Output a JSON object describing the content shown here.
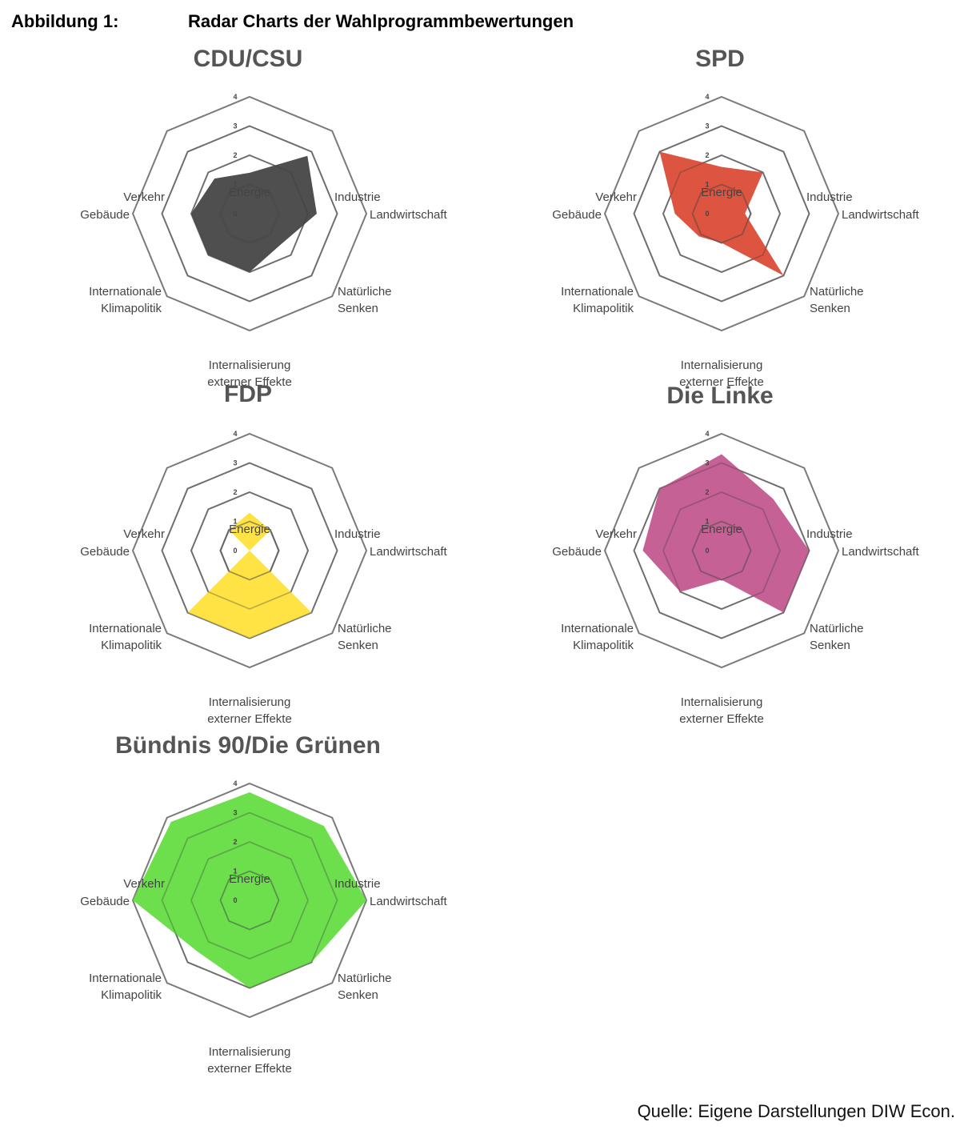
{
  "figure": {
    "label": "Abbildung 1:",
    "title": "Radar Charts der Wahlprogrammbewertungen",
    "source": "Quelle: Eigene Darstellungen DIW Econ."
  },
  "chart_data": [
    {
      "type": "radar",
      "title": "CDU/CSU",
      "color": "#3c3c3c",
      "categories": [
        "Energie",
        "Industrie",
        "Landwirtschaft",
        "Natürliche Senken",
        "Internalisierung externer Effekte",
        "Internationale Klimapolitik",
        "Gebäude",
        "Verkehr"
      ],
      "values": [
        1.4,
        2.8,
        2.3,
        1.5,
        2.0,
        2.0,
        2.0,
        1.7
      ],
      "ticks": [
        0,
        1,
        2,
        3,
        4
      ],
      "range": [
        0,
        4
      ]
    },
    {
      "type": "radar",
      "title": "SPD",
      "color": "#d9432b",
      "categories": [
        "Energie",
        "Industrie",
        "Landwirtschaft",
        "Natürliche Senken",
        "Internalisierung externer Effekte",
        "Internationale Klimapolitik",
        "Gebäude",
        "Verkehr"
      ],
      "values": [
        1.6,
        2.0,
        0.8,
        3.0,
        1.0,
        1.1,
        1.6,
        3.0
      ],
      "ticks": [
        0,
        1,
        2,
        3,
        4
      ],
      "range": [
        0,
        4
      ]
    },
    {
      "type": "radar",
      "title": "FDP",
      "color": "#ffe030",
      "categories": [
        "Energie",
        "Industrie",
        "Landwirtschaft",
        "Natürliche Senken",
        "Internalisierung externer Effekte",
        "Internationale Klimapolitik",
        "Gebäude",
        "Verkehr"
      ],
      "values": [
        1.3,
        1.0,
        0,
        3.0,
        3.0,
        3.0,
        0,
        1.0
      ],
      "ticks": [
        0,
        1,
        2,
        3,
        4
      ],
      "range": [
        0,
        4
      ]
    },
    {
      "type": "radar",
      "title": "Die Linke",
      "color": "#c0508a",
      "categories": [
        "Energie",
        "Industrie",
        "Landwirtschaft",
        "Natürliche Senken",
        "Internalisierung externer Effekte",
        "Internationale Klimapolitik",
        "Gebäude",
        "Verkehr"
      ],
      "values": [
        3.3,
        2.5,
        3.0,
        3.0,
        1.0,
        2.0,
        2.7,
        3.0
      ],
      "ticks": [
        0,
        1,
        2,
        3,
        4
      ],
      "range": [
        0,
        4
      ]
    },
    {
      "type": "radar",
      "title": "Bündnis 90/Die Grünen",
      "color": "#5ddc3a",
      "categories": [
        "Energie",
        "Industrie",
        "Landwirtschaft",
        "Natürliche Senken",
        "Internalisierung externer Effekte",
        "Internationale Klimapolitik",
        "Gebäude",
        "Verkehr"
      ],
      "values": [
        3.7,
        3.6,
        4.0,
        3.0,
        3.0,
        2.5,
        4.0,
        3.8
      ],
      "ticks": [
        0,
        1,
        2,
        3,
        4
      ],
      "range": [
        0,
        4
      ]
    }
  ]
}
